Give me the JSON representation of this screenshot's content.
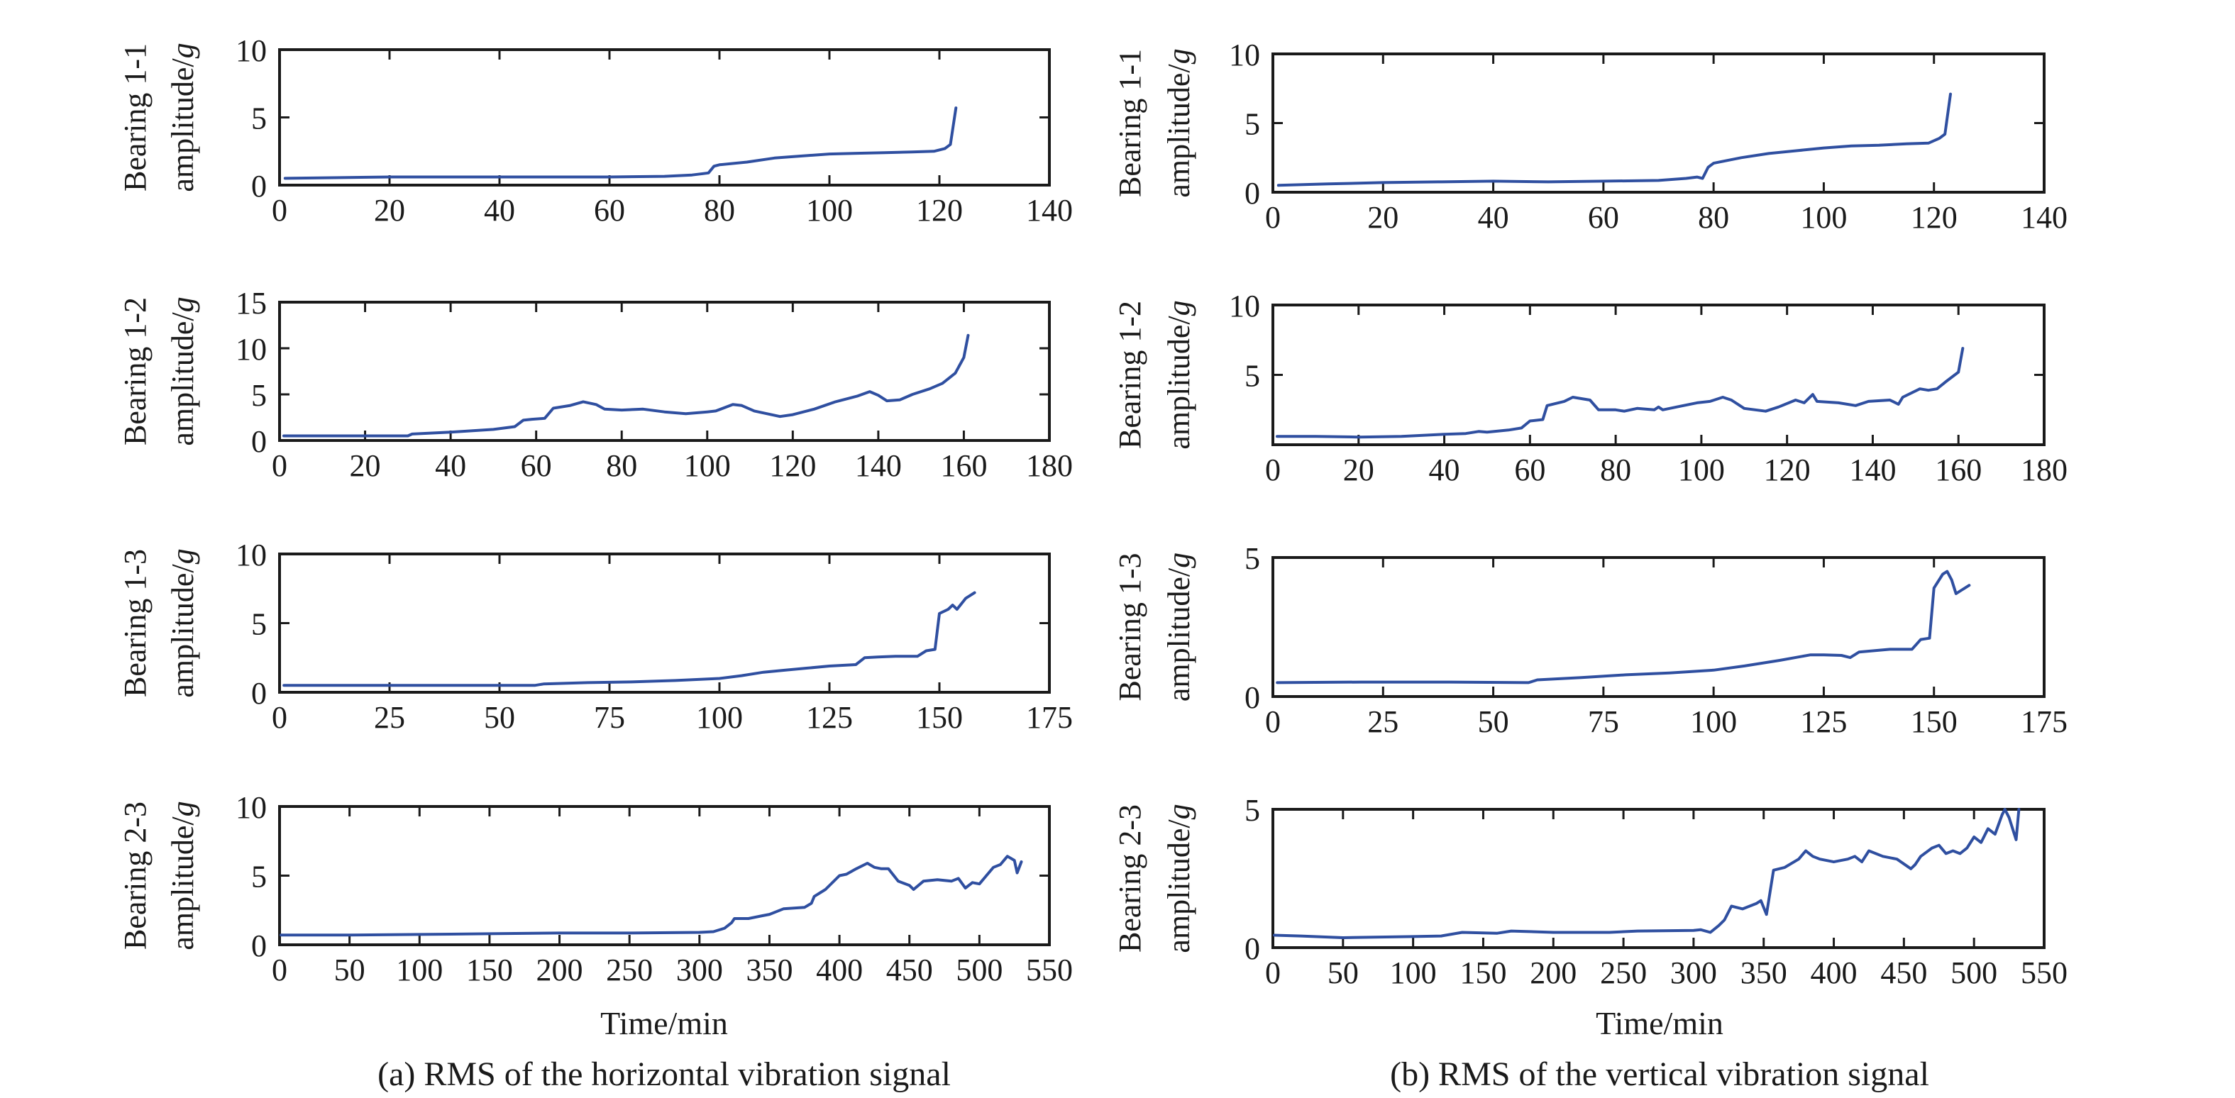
{
  "figure": {
    "caption_a": "(a) RMS of the horizontal vibration signal",
    "caption_b": "(b) RMS of the vertical vibration signal",
    "xlabel_a": "Time/min",
    "xlabel_b": "Time/min",
    "line_color": "#2f4fa0"
  },
  "chart_data": [
    {
      "id": "a-1-1",
      "type": "line",
      "panel": "a",
      "row": 1,
      "title": "",
      "ylabel_line1": "Bearing 1-1",
      "ylabel_line2": "amplitude/",
      "ylabel_unit": "g",
      "xlabel": "",
      "xlim": [
        0,
        140
      ],
      "ylim": [
        0,
        10
      ],
      "xticks": [
        0,
        20,
        40,
        60,
        80,
        100,
        120,
        140
      ],
      "yticks": [
        0,
        5,
        10
      ],
      "ytick_labels": [
        "0",
        "5",
        "10"
      ],
      "grid": false,
      "series": [
        {
          "name": "Bearing 1-1 horizontal RMS",
          "x": [
            1,
            10,
            20,
            30,
            40,
            50,
            60,
            70,
            75,
            77,
            78,
            79,
            80,
            85,
            90,
            95,
            100,
            105,
            110,
            115,
            119,
            121,
            122,
            123
          ],
          "y": [
            0.5,
            0.55,
            0.6,
            0.6,
            0.6,
            0.6,
            0.6,
            0.65,
            0.75,
            0.85,
            0.9,
            1.4,
            1.5,
            1.7,
            2.0,
            2.15,
            2.3,
            2.35,
            2.4,
            2.45,
            2.5,
            2.7,
            3.0,
            5.7
          ]
        }
      ]
    },
    {
      "id": "a-1-2",
      "type": "line",
      "panel": "a",
      "row": 2,
      "title": "",
      "ylabel_line1": "Bearing 1-2",
      "ylabel_line2": "amplitude/",
      "ylabel_unit": "g",
      "xlabel": "",
      "xlim": [
        0,
        180
      ],
      "ylim": [
        0,
        15
      ],
      "xticks": [
        0,
        20,
        40,
        60,
        80,
        100,
        120,
        140,
        160,
        180
      ],
      "yticks": [
        0,
        5,
        10,
        15
      ],
      "ytick_labels": [
        "0",
        "5",
        "10",
        "15"
      ],
      "grid": false,
      "series": [
        {
          "name": "Bearing 1-2 horizontal RMS",
          "x": [
            1,
            10,
            20,
            30,
            31,
            40,
            50,
            55,
            57,
            59,
            62,
            64,
            68,
            71,
            74,
            76,
            80,
            85,
            90,
            95,
            100,
            102,
            106,
            108,
            111,
            114,
            117,
            120,
            125,
            130,
            135,
            138,
            140,
            142,
            145,
            148,
            152,
            155,
            158,
            160,
            161
          ],
          "y": [
            0.5,
            0.5,
            0.5,
            0.5,
            0.7,
            0.9,
            1.2,
            1.5,
            2.2,
            2.3,
            2.4,
            3.5,
            3.8,
            4.2,
            3.9,
            3.4,
            3.3,
            3.4,
            3.1,
            2.9,
            3.1,
            3.2,
            3.9,
            3.8,
            3.2,
            2.9,
            2.6,
            2.8,
            3.4,
            4.2,
            4.8,
            5.3,
            4.9,
            4.3,
            4.4,
            5.0,
            5.6,
            6.2,
            7.3,
            9.0,
            11.4
          ]
        }
      ]
    },
    {
      "id": "a-1-3",
      "type": "line",
      "panel": "a",
      "row": 3,
      "title": "",
      "ylabel_line1": "Bearing 1-3",
      "ylabel_line2": "amplitude/",
      "ylabel_unit": "g",
      "xlabel": "",
      "xlim": [
        0,
        175
      ],
      "ylim": [
        0,
        10
      ],
      "xticks": [
        0,
        25,
        50,
        75,
        100,
        125,
        150,
        175
      ],
      "yticks": [
        0,
        5,
        10
      ],
      "ytick_labels": [
        "0",
        "5",
        "10"
      ],
      "grid": false,
      "series": [
        {
          "name": "Bearing 1-3 horizontal RMS",
          "x": [
            1,
            20,
            40,
            58,
            60,
            70,
            80,
            90,
            100,
            105,
            110,
            115,
            120,
            125,
            131,
            133,
            136,
            140,
            145,
            147,
            149,
            150,
            152,
            153,
            154,
            156,
            158
          ],
          "y": [
            0.5,
            0.5,
            0.5,
            0.5,
            0.6,
            0.7,
            0.75,
            0.85,
            1.0,
            1.2,
            1.45,
            1.6,
            1.75,
            1.9,
            2.0,
            2.5,
            2.55,
            2.6,
            2.6,
            3.0,
            3.1,
            5.7,
            6.0,
            6.3,
            6.0,
            6.8,
            7.2
          ]
        }
      ]
    },
    {
      "id": "a-2-3",
      "type": "line",
      "panel": "a",
      "row": 4,
      "title": "",
      "ylabel_line1": "Bearing 2-3",
      "ylabel_line2": "amplitude/",
      "ylabel_unit": "g",
      "xlabel": "Time/min",
      "xlim": [
        0,
        550
      ],
      "ylim": [
        0,
        10
      ],
      "xticks": [
        0,
        50,
        100,
        150,
        200,
        250,
        300,
        350,
        400,
        450,
        500,
        550
      ],
      "yticks": [
        0,
        5,
        10
      ],
      "ytick_labels": [
        "0",
        "5",
        "10"
      ],
      "grid": false,
      "series": [
        {
          "name": "Bearing 2-3 horizontal RMS",
          "x": [
            1,
            50,
            100,
            150,
            200,
            250,
            300,
            310,
            318,
            323,
            325,
            335,
            345,
            350,
            360,
            375,
            380,
            382,
            390,
            400,
            405,
            412,
            420,
            425,
            430,
            435,
            442,
            450,
            453,
            460,
            470,
            480,
            485,
            490,
            495,
            500,
            505,
            510,
            515,
            520,
            525,
            527,
            530
          ],
          "y": [
            0.7,
            0.7,
            0.75,
            0.8,
            0.85,
            0.85,
            0.9,
            0.95,
            1.2,
            1.6,
            1.9,
            1.9,
            2.1,
            2.2,
            2.6,
            2.7,
            3.0,
            3.5,
            4.0,
            5.0,
            5.1,
            5.5,
            5.9,
            5.6,
            5.5,
            5.5,
            4.6,
            4.3,
            4.0,
            4.6,
            4.7,
            4.6,
            4.8,
            4.1,
            4.5,
            4.4,
            5.0,
            5.6,
            5.8,
            6.4,
            6.1,
            5.2,
            6.0
          ]
        }
      ]
    },
    {
      "id": "b-1-1",
      "type": "line",
      "panel": "b",
      "row": 1,
      "title": "",
      "ylabel_line1": "Bearing 1-1",
      "ylabel_line2": "amplitude/",
      "ylabel_unit": "g",
      "xlabel": "",
      "xlim": [
        0,
        140
      ],
      "ylim": [
        0,
        10
      ],
      "xticks": [
        0,
        20,
        40,
        60,
        80,
        100,
        120,
        140
      ],
      "yticks": [
        0,
        5,
        10
      ],
      "ytick_labels": [
        "0",
        "5",
        "10"
      ],
      "grid": false,
      "series": [
        {
          "name": "Bearing 1-1 vertical RMS",
          "x": [
            1,
            10,
            20,
            30,
            40,
            50,
            60,
            70,
            75,
            77,
            78,
            79,
            80,
            85,
            90,
            95,
            100,
            105,
            110,
            115,
            119,
            121,
            122,
            123
          ],
          "y": [
            0.5,
            0.6,
            0.7,
            0.75,
            0.8,
            0.75,
            0.8,
            0.85,
            1.0,
            1.1,
            1.0,
            1.8,
            2.1,
            2.5,
            2.8,
            3.0,
            3.2,
            3.35,
            3.4,
            3.5,
            3.55,
            3.9,
            4.2,
            7.1
          ]
        }
      ]
    },
    {
      "id": "b-1-2",
      "type": "line",
      "panel": "b",
      "row": 2,
      "title": "",
      "ylabel_line1": "Bearing 1-2",
      "ylabel_line2": "amplitude/",
      "ylabel_unit": "g",
      "xlabel": "",
      "xlim": [
        0,
        180
      ],
      "ylim": [
        0,
        10
      ],
      "xticks": [
        0,
        20,
        40,
        60,
        80,
        100,
        120,
        140,
        160,
        180
      ],
      "yticks": [
        5,
        10
      ],
      "ytick_labels": [
        "5",
        "10"
      ],
      "grid": false,
      "series": [
        {
          "name": "Bearing 1-2 vertical RMS",
          "x": [
            1,
            10,
            20,
            30,
            40,
            45,
            48,
            50,
            55,
            58,
            60,
            63,
            64,
            68,
            70,
            74,
            76,
            80,
            82,
            85,
            89,
            90,
            91,
            95,
            99,
            102,
            105,
            107,
            110,
            115,
            118,
            122,
            124,
            126,
            127,
            132,
            136,
            139,
            144,
            146,
            147,
            151,
            153,
            155,
            157,
            160,
            161
          ],
          "y": [
            0.6,
            0.6,
            0.55,
            0.6,
            0.75,
            0.8,
            0.95,
            0.9,
            1.05,
            1.2,
            1.7,
            1.8,
            2.8,
            3.1,
            3.4,
            3.2,
            2.5,
            2.5,
            2.4,
            2.6,
            2.5,
            2.7,
            2.5,
            2.75,
            3.0,
            3.1,
            3.4,
            3.2,
            2.6,
            2.4,
            2.7,
            3.2,
            3.0,
            3.6,
            3.1,
            3.0,
            2.8,
            3.1,
            3.2,
            2.9,
            3.4,
            4.0,
            3.9,
            4.0,
            4.5,
            5.2,
            6.9
          ]
        }
      ]
    },
    {
      "id": "b-1-3",
      "type": "line",
      "panel": "b",
      "row": 3,
      "title": "",
      "ylabel_line1": "Bearing 1-3",
      "ylabel_line2": "amplitude/",
      "ylabel_unit": "g",
      "xlabel": "",
      "xlim": [
        0,
        175
      ],
      "ylim": [
        0,
        5
      ],
      "xticks": [
        0,
        25,
        50,
        75,
        100,
        125,
        150,
        175
      ],
      "yticks": [
        0,
        5
      ],
      "ytick_labels": [
        "0",
        "5"
      ],
      "grid": false,
      "series": [
        {
          "name": "Bearing 1-3 vertical RMS",
          "x": [
            1,
            20,
            40,
            58,
            60,
            70,
            80,
            90,
            100,
            107,
            115,
            122,
            125,
            129,
            131,
            133,
            140,
            145,
            147,
            149,
            150,
            152,
            153,
            154,
            155,
            156,
            158
          ],
          "y": [
            0.5,
            0.52,
            0.52,
            0.5,
            0.6,
            0.68,
            0.78,
            0.85,
            0.95,
            1.1,
            1.3,
            1.5,
            1.5,
            1.48,
            1.4,
            1.6,
            1.7,
            1.7,
            2.05,
            2.1,
            3.9,
            4.4,
            4.5,
            4.2,
            3.7,
            3.8,
            4.0
          ]
        }
      ]
    },
    {
      "id": "b-2-3",
      "type": "line",
      "panel": "b",
      "row": 4,
      "title": "",
      "ylabel_line1": "Bearing 2-3",
      "ylabel_line2": "amplitude/",
      "ylabel_unit": "g",
      "xlabel": "Time/min",
      "xlim": [
        0,
        550
      ],
      "ylim": [
        0,
        5
      ],
      "xticks": [
        0,
        50,
        100,
        150,
        200,
        250,
        300,
        350,
        400,
        450,
        500,
        550
      ],
      "yticks": [
        0,
        5
      ],
      "ytick_labels": [
        "0",
        "5"
      ],
      "grid": false,
      "series": [
        {
          "name": "Bearing 2-3 vertical RMS",
          "x": [
            1,
            20,
            50,
            100,
            120,
            135,
            160,
            170,
            200,
            240,
            260,
            300,
            305,
            312,
            318,
            322,
            327,
            335,
            345,
            348,
            352,
            357,
            365,
            375,
            380,
            385,
            390,
            400,
            410,
            415,
            420,
            425,
            435,
            445,
            455,
            458,
            462,
            470,
            475,
            480,
            485,
            490,
            495,
            500,
            505,
            510,
            515,
            520,
            522,
            525,
            530,
            532
          ],
          "y": [
            0.45,
            0.42,
            0.36,
            0.4,
            0.42,
            0.55,
            0.52,
            0.6,
            0.55,
            0.55,
            0.6,
            0.62,
            0.65,
            0.55,
            0.8,
            1.0,
            1.5,
            1.4,
            1.6,
            1.7,
            1.2,
            2.8,
            2.9,
            3.2,
            3.5,
            3.3,
            3.2,
            3.1,
            3.2,
            3.3,
            3.1,
            3.5,
            3.3,
            3.2,
            2.85,
            3.0,
            3.3,
            3.6,
            3.7,
            3.4,
            3.5,
            3.4,
            3.6,
            4.0,
            3.8,
            4.3,
            4.1,
            4.8,
            5.0,
            4.7,
            3.9,
            5.0
          ]
        }
      ]
    }
  ]
}
